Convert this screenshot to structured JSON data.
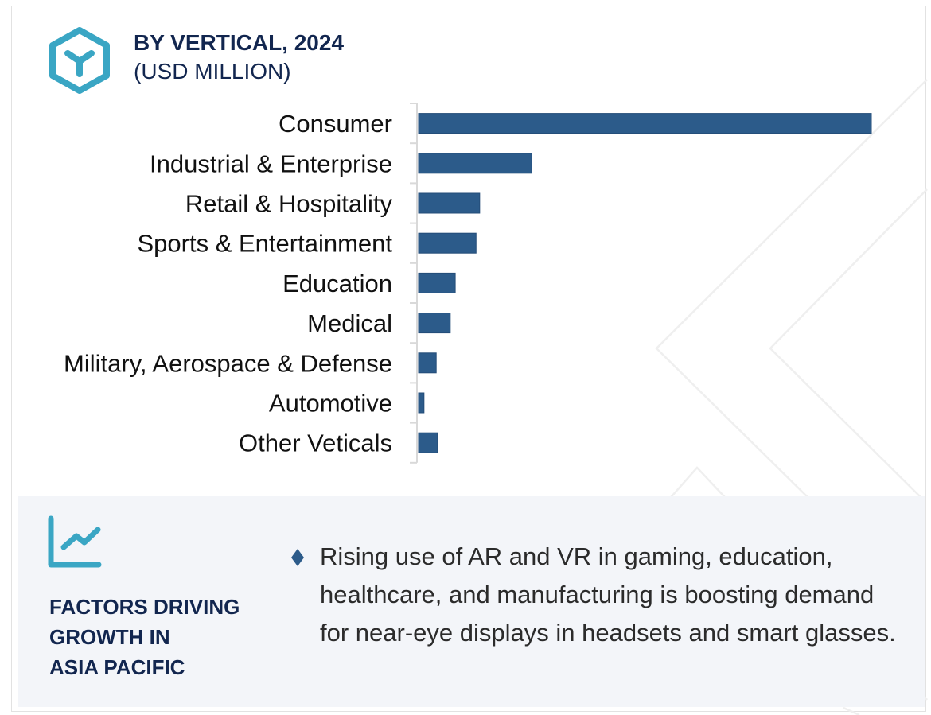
{
  "header": {
    "icon": "hexagon-cube-icon",
    "title": "BY VERTICAL, 2024",
    "subtitle": "(USD MILLION)"
  },
  "colors": {
    "bar": "#2c5b8a",
    "accent": "#3aa6c4",
    "title": "#12264f",
    "panel_bg": "#f3f5f9",
    "axis": "#d9d9d9"
  },
  "chart_data": {
    "type": "bar",
    "orientation": "horizontal",
    "title": "BY VERTICAL, 2024",
    "subtitle": "(USD MILLION)",
    "xlabel": "",
    "ylabel": "",
    "value_note": "No axis values shown; values are relative estimates with Consumer = 100",
    "categories": [
      "Consumer",
      "Industrial & Enterprise",
      "Retail & Hospitality",
      "Sports & Entertainment",
      "Education",
      "Medical",
      "Military, Aerospace & Defense",
      "Automotive",
      "Other Veticals"
    ],
    "values": [
      100,
      25,
      13.5,
      12.7,
      8.1,
      7.0,
      3.9,
      1.2,
      4.2
    ],
    "xlim": [
      0,
      100
    ],
    "grid": false,
    "legend": "none"
  },
  "factors": {
    "icon": "trend-chart-icon",
    "title_lines": [
      "FACTORS DRIVING",
      "GROWTH IN",
      "ASIA PACIFIC"
    ],
    "bullet_icon": "diamond-bullet-icon",
    "bullets": [
      "Rising use of AR and VR in gaming, education, healthcare, and manufacturing is boosting demand for near-eye displays in headsets and smart glasses."
    ]
  }
}
